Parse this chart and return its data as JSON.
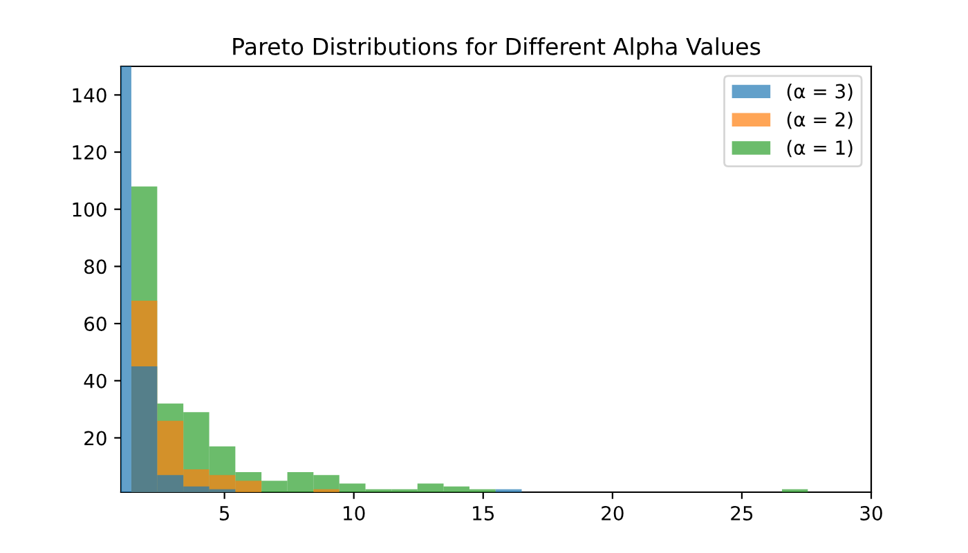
{
  "chart_data": {
    "type": "histogram",
    "title": "Pareto Distributions for Different Alpha Values",
    "bins": [
      0.39,
      1.4,
      2.4,
      3.41,
      4.41,
      5.42,
      6.43,
      7.43,
      8.44,
      9.44,
      10.45,
      11.46,
      12.46,
      13.47,
      14.47,
      15.48,
      16.49,
      17.49,
      18.5,
      19.5,
      20.51,
      21.52,
      22.52,
      23.53,
      24.53,
      25.54,
      26.55,
      27.55
    ],
    "series": [
      {
        "name": "(α = 3)",
        "color": "#1f77b4",
        "values": [
          150,
          45,
          7,
          3,
          2,
          null,
          null,
          null,
          null,
          null,
          null,
          null,
          null,
          null,
          null,
          2,
          null,
          null,
          null,
          null,
          null,
          null,
          null,
          null,
          null,
          null,
          null
        ]
      },
      {
        "name": "(α = 2)",
        "color": "#ff7f0e",
        "values": [
          null,
          68,
          26,
          9,
          7,
          5,
          null,
          null,
          2,
          null,
          null,
          null,
          null,
          null,
          null,
          null,
          null,
          null,
          null,
          null,
          null,
          null,
          null,
          null,
          null,
          null,
          null
        ]
      },
      {
        "name": "(α = 1)",
        "color": "#2ca02c",
        "values": [
          null,
          108,
          32,
          29,
          17,
          8,
          5,
          8,
          7,
          4,
          2,
          2,
          4,
          3,
          2,
          null,
          null,
          null,
          null,
          null,
          null,
          null,
          null,
          null,
          null,
          null,
          2
        ]
      }
    ],
    "xlim": [
      1,
      30
    ],
    "ylim": [
      1,
      150
    ],
    "xticks": [
      5,
      10,
      15,
      20,
      25,
      30
    ],
    "yticks": [
      20,
      40,
      60,
      80,
      100,
      120,
      140
    ],
    "legend": "top right",
    "grid": false
  }
}
